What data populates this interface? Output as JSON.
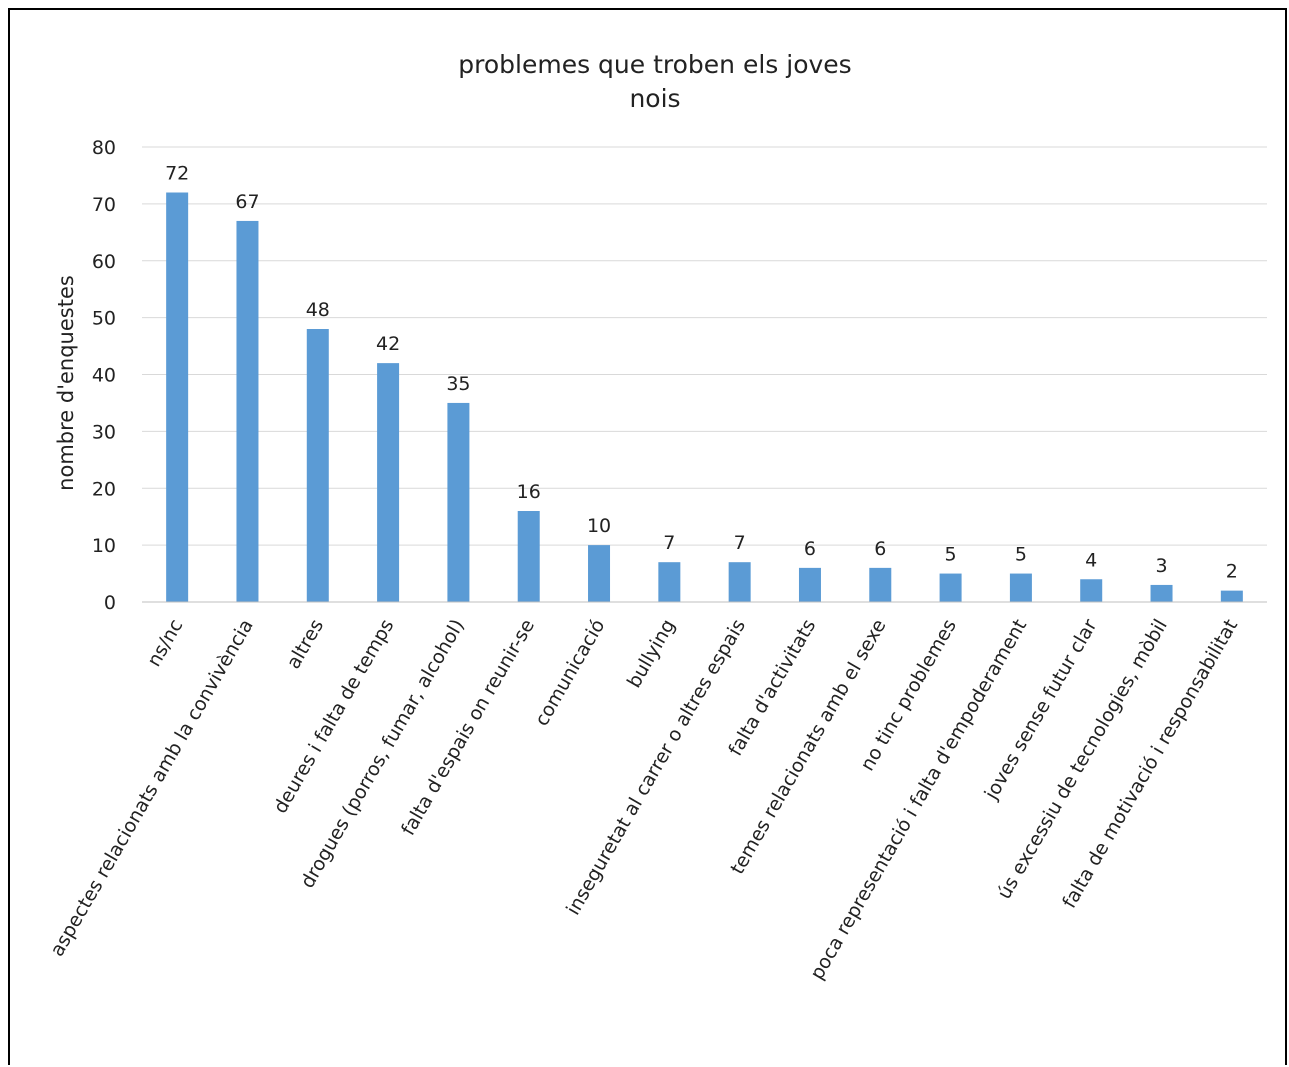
{
  "chart_data": {
    "type": "bar",
    "title": "problemes que troben els joves",
    "subtitle": "nois",
    "xlabel": "",
    "ylabel": "nombre d'enquestes",
    "ylim": [
      0,
      80
    ],
    "yticks": [
      0,
      10,
      20,
      30,
      40,
      50,
      60,
      70,
      80
    ],
    "grid": true,
    "bar_color": "#5b9bd5",
    "categories": [
      "ns/nc",
      "aspectes relacionats amb la convivència",
      "altres",
      "deures i falta de temps",
      "drogues (porros, fumar, alcohol)",
      "falta d'espais on reunir-se",
      "comunicació",
      "bullying",
      "inseguretat al carrer o altres espais",
      "falta d'activitats",
      "temes relacionats amb el sexe",
      "no tinc problemes",
      "poca representació i falta d'empoderament",
      "joves sense futur clar",
      "ús excessiu de tecnologies, mòbil",
      "falta de motivació i responsabilitat"
    ],
    "values": [
      72,
      67,
      48,
      42,
      35,
      16,
      10,
      7,
      7,
      6,
      6,
      5,
      5,
      4,
      3,
      2
    ]
  }
}
